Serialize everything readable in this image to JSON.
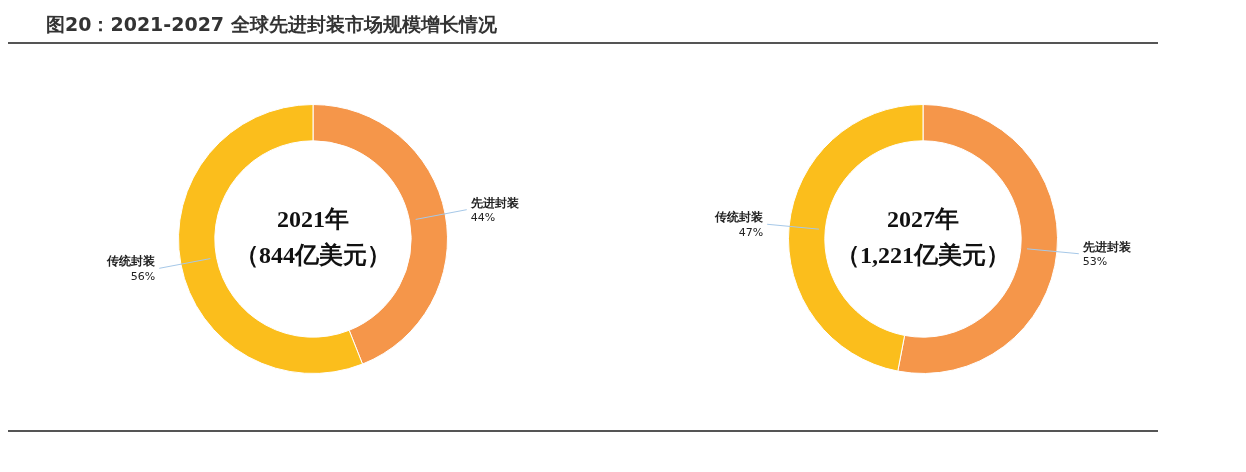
{
  "chart_data": [
    {
      "type": "donut",
      "title": "图20：2021-2027 全球先进封装市场规模增长情况",
      "categories": [
        "先进封装",
        "传统封装"
      ],
      "values": [
        44,
        56
      ],
      "value_labels": [
        "44%",
        "56%"
      ],
      "colors": [
        "#f5964a",
        "#fbbe1c"
      ],
      "annotations": [
        "2021年",
        "（844亿美元）"
      ]
    },
    {
      "type": "donut",
      "categories": [
        "先进封装",
        "传统封装"
      ],
      "values": [
        53,
        47
      ],
      "value_labels": [
        "53%",
        "47%"
      ],
      "colors": [
        "#f5964a",
        "#fbbe1c"
      ],
      "annotations": [
        "2027年",
        "（1,221亿美元）"
      ]
    }
  ]
}
